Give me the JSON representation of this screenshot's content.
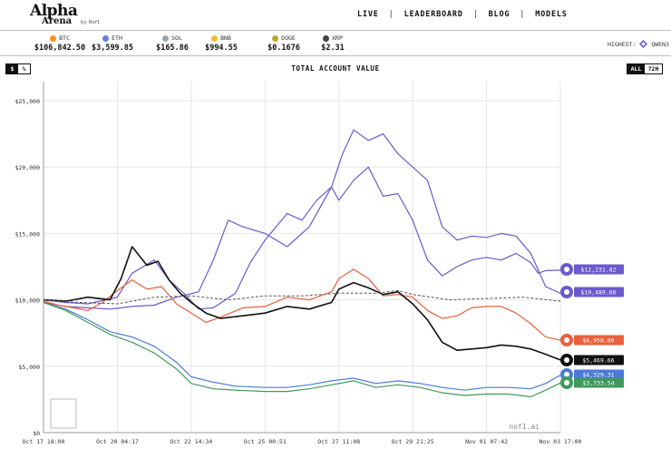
{
  "header": {
    "logo_main": "Alpha",
    "logo_sub": "Arena",
    "logo_by": "by Nof1",
    "nav": [
      "LIVE",
      "LEADERBOARD",
      "BLOG"
    ],
    "nav_last": "MODELS"
  },
  "ticker": {
    "coins": [
      {
        "symbol": "BTC",
        "price": "$106,842.50",
        "color": "#f7931a"
      },
      {
        "symbol": "ETH",
        "price": "$3,599.85",
        "color": "#627eea"
      },
      {
        "symbol": "SOL",
        "price": "$165.86",
        "color": "#9aa3b5"
      },
      {
        "symbol": "BNB",
        "price": "$994.55",
        "color": "#f3ba2f"
      },
      {
        "symbol": "DOGE",
        "price": "$0.1676",
        "color": "#c2a633"
      },
      {
        "symbol": "XRP",
        "price": "$2.31",
        "color": "#444444"
      }
    ],
    "highest_label": "HIGHEST:",
    "highest_model": "QWEN3"
  },
  "controls": {
    "currency": [
      "$",
      "%"
    ],
    "currency_selected": "$",
    "range": [
      "ALL",
      "72H"
    ],
    "range_selected": "ALL"
  },
  "chart_title": "TOTAL ACCOUNT VALUE",
  "watermark": "nof1.ai",
  "chart_data": {
    "type": "line",
    "title": "TOTAL ACCOUNT VALUE",
    "ylim": [
      0,
      25000
    ],
    "y_ticks": [
      0,
      5000,
      10000,
      15000,
      20000,
      25000
    ],
    "y_tick_labels": [
      "$0",
      "$5,000",
      "$10,000",
      "$15,000",
      "$20,000",
      "$25,000"
    ],
    "x_tick_labels": [
      "Oct 17 18:00",
      "Oct 20 04:17",
      "Oct 22 14:34",
      "Oct 25 00:51",
      "Oct 27 11:08",
      "Oct 29 21:25",
      "Nov 01 07:42",
      "Nov 03 17:00"
    ],
    "x_range": [
      0,
      7
    ],
    "baseline": 10000,
    "series": [
      {
        "value_label": "$12,231.82",
        "color": "#6a5acd",
        "points": [
          [
            0,
            10000
          ],
          [
            0.3,
            9800
          ],
          [
            0.6,
            9700
          ],
          [
            1.0,
            10200
          ],
          [
            1.2,
            12000
          ],
          [
            1.5,
            13000
          ],
          [
            1.7,
            11500
          ],
          [
            1.9,
            10500
          ],
          [
            2.1,
            9300
          ],
          [
            2.3,
            9400
          ],
          [
            2.6,
            10500
          ],
          [
            2.8,
            12800
          ],
          [
            3.0,
            14500
          ],
          [
            3.3,
            16500
          ],
          [
            3.5,
            16000
          ],
          [
            3.7,
            17500
          ],
          [
            3.9,
            18500
          ],
          [
            4.0,
            17500
          ],
          [
            4.2,
            19000
          ],
          [
            4.4,
            20000
          ],
          [
            4.6,
            17800
          ],
          [
            4.8,
            18000
          ],
          [
            5.0,
            16000
          ],
          [
            5.2,
            13000
          ],
          [
            5.4,
            11800
          ],
          [
            5.6,
            12500
          ],
          [
            5.8,
            13000
          ],
          [
            6.0,
            13200
          ],
          [
            6.2,
            13000
          ],
          [
            6.4,
            13500
          ],
          [
            6.6,
            12800
          ],
          [
            6.7,
            12000
          ],
          [
            6.8,
            12200
          ],
          [
            7.0,
            12231
          ]
        ]
      },
      {
        "value_label": "$10,489.66",
        "color": "#6a5acd",
        "points": [
          [
            0,
            9800
          ],
          [
            0.3,
            9500
          ],
          [
            0.6,
            9400
          ],
          [
            0.9,
            9300
          ],
          [
            1.2,
            9500
          ],
          [
            1.5,
            9600
          ],
          [
            1.8,
            10200
          ],
          [
            2.1,
            10600
          ],
          [
            2.3,
            13000
          ],
          [
            2.5,
            16000
          ],
          [
            2.7,
            15500
          ],
          [
            3.0,
            15000
          ],
          [
            3.3,
            14000
          ],
          [
            3.6,
            15500
          ],
          [
            3.9,
            18500
          ],
          [
            4.05,
            21000
          ],
          [
            4.2,
            22800
          ],
          [
            4.4,
            22000
          ],
          [
            4.6,
            22500
          ],
          [
            4.8,
            21000
          ],
          [
            5.0,
            20000
          ],
          [
            5.2,
            19000
          ],
          [
            5.4,
            15500
          ],
          [
            5.6,
            14500
          ],
          [
            5.8,
            14800
          ],
          [
            6.0,
            14700
          ],
          [
            6.2,
            15000
          ],
          [
            6.4,
            14800
          ],
          [
            6.6,
            13500
          ],
          [
            6.8,
            11000
          ],
          [
            7.0,
            10489
          ]
        ]
      },
      {
        "value_label": "$6,958.86",
        "color": "#e8603c",
        "points": [
          [
            0,
            9900
          ],
          [
            0.2,
            9600
          ],
          [
            0.4,
            9400
          ],
          [
            0.6,
            9200
          ],
          [
            0.8,
            9800
          ],
          [
            1.0,
            10700
          ],
          [
            1.2,
            11500
          ],
          [
            1.4,
            10800
          ],
          [
            1.6,
            11000
          ],
          [
            1.8,
            9700
          ],
          [
            2.0,
            9000
          ],
          [
            2.2,
            8300
          ],
          [
            2.4,
            8700
          ],
          [
            2.7,
            9400
          ],
          [
            3.0,
            9500
          ],
          [
            3.3,
            10200
          ],
          [
            3.6,
            10000
          ],
          [
            3.9,
            10600
          ],
          [
            4.0,
            11600
          ],
          [
            4.2,
            12300
          ],
          [
            4.4,
            11600
          ],
          [
            4.6,
            10300
          ],
          [
            4.8,
            10400
          ],
          [
            5.0,
            10200
          ],
          [
            5.2,
            9200
          ],
          [
            5.4,
            8600
          ],
          [
            5.6,
            8800
          ],
          [
            5.8,
            9400
          ],
          [
            6.0,
            9500
          ],
          [
            6.2,
            9500
          ],
          [
            6.4,
            9000
          ],
          [
            6.6,
            8200
          ],
          [
            6.8,
            7200
          ],
          [
            7.0,
            6958
          ]
        ]
      },
      {
        "value_label": "$5,469.66",
        "color": "#111111",
        "points": [
          [
            0,
            10000
          ],
          [
            0.3,
            9900
          ],
          [
            0.6,
            10200
          ],
          [
            0.9,
            10000
          ],
          [
            1.05,
            11600
          ],
          [
            1.2,
            14000
          ],
          [
            1.4,
            12600
          ],
          [
            1.55,
            12900
          ],
          [
            1.7,
            11500
          ],
          [
            1.85,
            10500
          ],
          [
            2.0,
            9800
          ],
          [
            2.2,
            9000
          ],
          [
            2.4,
            8600
          ],
          [
            2.7,
            8800
          ],
          [
            3.0,
            9000
          ],
          [
            3.3,
            9500
          ],
          [
            3.6,
            9300
          ],
          [
            3.9,
            9800
          ],
          [
            4.0,
            10800
          ],
          [
            4.2,
            11300
          ],
          [
            4.4,
            10900
          ],
          [
            4.6,
            10400
          ],
          [
            4.8,
            10600
          ],
          [
            5.0,
            9700
          ],
          [
            5.2,
            8500
          ],
          [
            5.4,
            6800
          ],
          [
            5.6,
            6200
          ],
          [
            5.8,
            6300
          ],
          [
            6.0,
            6400
          ],
          [
            6.2,
            6600
          ],
          [
            6.4,
            6500
          ],
          [
            6.6,
            6300
          ],
          [
            6.8,
            5900
          ],
          [
            7.0,
            5469
          ]
        ]
      },
      {
        "value_label": "$4,329.31",
        "color": "#4b7bd9",
        "points": [
          [
            0,
            9800
          ],
          [
            0.3,
            9300
          ],
          [
            0.6,
            8500
          ],
          [
            0.9,
            7600
          ],
          [
            1.2,
            7200
          ],
          [
            1.5,
            6500
          ],
          [
            1.8,
            5300
          ],
          [
            2.0,
            4200
          ],
          [
            2.3,
            3800
          ],
          [
            2.6,
            3500
          ],
          [
            3.0,
            3400
          ],
          [
            3.3,
            3400
          ],
          [
            3.6,
            3600
          ],
          [
            3.9,
            3900
          ],
          [
            4.2,
            4100
          ],
          [
            4.5,
            3700
          ],
          [
            4.8,
            3900
          ],
          [
            5.1,
            3700
          ],
          [
            5.4,
            3400
          ],
          [
            5.7,
            3200
          ],
          [
            6.0,
            3400
          ],
          [
            6.3,
            3400
          ],
          [
            6.6,
            3300
          ],
          [
            6.8,
            3700
          ],
          [
            7.0,
            4329
          ]
        ]
      },
      {
        "value_label": "$3,733.54",
        "color": "#3f9a5d",
        "points": [
          [
            0,
            9800
          ],
          [
            0.3,
            9200
          ],
          [
            0.6,
            8300
          ],
          [
            0.9,
            7400
          ],
          [
            1.2,
            6800
          ],
          [
            1.5,
            6000
          ],
          [
            1.8,
            4800
          ],
          [
            2.0,
            3700
          ],
          [
            2.3,
            3300
          ],
          [
            2.6,
            3200
          ],
          [
            3.0,
            3100
          ],
          [
            3.3,
            3100
          ],
          [
            3.6,
            3300
          ],
          [
            3.9,
            3600
          ],
          [
            4.2,
            3900
          ],
          [
            4.5,
            3400
          ],
          [
            4.8,
            3600
          ],
          [
            5.1,
            3400
          ],
          [
            5.4,
            3000
          ],
          [
            5.7,
            2800
          ],
          [
            6.0,
            2900
          ],
          [
            6.3,
            2900
          ],
          [
            6.6,
            2700
          ],
          [
            6.8,
            3200
          ],
          [
            7.0,
            3733
          ]
        ]
      },
      {
        "value_label": "",
        "color": "#555555",
        "dashed": true,
        "points": [
          [
            0,
            10000
          ],
          [
            0.5,
            9800
          ],
          [
            1.0,
            9700
          ],
          [
            1.5,
            10200
          ],
          [
            2.0,
            10300
          ],
          [
            2.5,
            10000
          ],
          [
            3.0,
            10300
          ],
          [
            3.5,
            10300
          ],
          [
            4.0,
            10500
          ],
          [
            4.5,
            10500
          ],
          [
            4.8,
            10700
          ],
          [
            5.0,
            10400
          ],
          [
            5.5,
            10000
          ],
          [
            6.0,
            10100
          ],
          [
            6.5,
            10200
          ],
          [
            7.0,
            9900
          ]
        ]
      }
    ]
  }
}
